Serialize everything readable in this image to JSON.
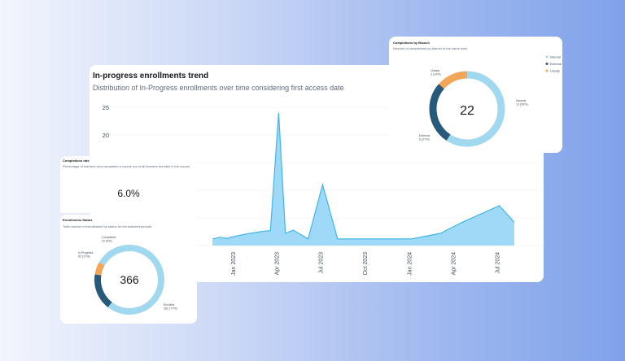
{
  "trend": {
    "title": "In-progress enrollments trend",
    "subtitle": "Distribution of In-Progress enrollments over time considering first access date",
    "chart_data": {
      "type": "area",
      "title": "In-progress enrollments trend",
      "subtitle": "Distribution of In-Progress enrollments over time considering first access date",
      "xlabel": "",
      "ylabel": "",
      "y_ticks": [
        20,
        25
      ],
      "x_ticks": [
        "Jan 2023",
        "Apr 2023",
        "Jul 2023",
        "Oct 2023",
        "Jan 2024",
        "Apr 2024",
        "Jul 2024"
      ],
      "grid": true,
      "color": "#8dd3f6",
      "line_color": "#42b4ec",
      "series": [
        {
          "x": [
            "2022-11-15",
            "2022-12-01",
            "2022-12-15",
            "2023-01-01",
            "2023-02-01",
            "2023-03-01",
            "2023-03-15",
            "2023-04-01",
            "2023-04-15",
            "2023-05-01",
            "2023-06-01",
            "2023-07-01",
            "2023-08-01",
            "2023-08-20",
            "2023-09-15",
            "2023-10-15",
            "2023-11-15",
            "2024-01-01",
            "2024-03-01",
            "2024-04-15",
            "2024-07-01",
            "2024-08-01"
          ],
          "y": [
            1.2,
            1.5,
            1.3,
            1.7,
            2.2,
            2.6,
            2.7,
            24.0,
            2.2,
            2.8,
            1.2,
            11.0,
            1.2,
            1.2,
            1.2,
            1.2,
            1.2,
            1.2,
            2.2,
            4.2,
            7.2,
            4.2
          ]
        }
      ]
    }
  },
  "branch": {
    "title": "Completions by Branch",
    "subtitle": "Number of completions by branch of the same level",
    "total": "22",
    "legend": [
      {
        "label": "Internal",
        "color": "#9fd8ef"
      },
      {
        "label": "External",
        "color": "#26597a"
      },
      {
        "label": "Unsaty",
        "color": "#f2a65a"
      }
    ],
    "chart_data": {
      "type": "pie",
      "categories": [
        "Internal",
        "External",
        "Unsaty"
      ],
      "values": [
        13,
        6,
        3
      ],
      "value_labels": [
        "13 (59%)",
        "6 (27%)",
        "3 (14%)"
      ],
      "colors": [
        "#9fd8ef",
        "#26597a",
        "#f2a65a"
      ]
    }
  },
  "rate": {
    "title": "Completions rate",
    "description": "Percentage of learners who completed a course out of all learners enrolled in the course",
    "value": "6.0%"
  },
  "status": {
    "title": "Enrollments Status",
    "description": "Total number of enrollments by status for the selected periods.",
    "total": "366",
    "chart_data": {
      "type": "pie",
      "categories": [
        "Enrolled",
        "In Progress",
        "Completed"
      ],
      "values": [
        282,
        62,
        22
      ],
      "value_labels": [
        "282 (77%)",
        "62 (17%)",
        "22 (6%)"
      ],
      "colors": [
        "#9fd8ef",
        "#26597a",
        "#f2a65a"
      ]
    }
  }
}
